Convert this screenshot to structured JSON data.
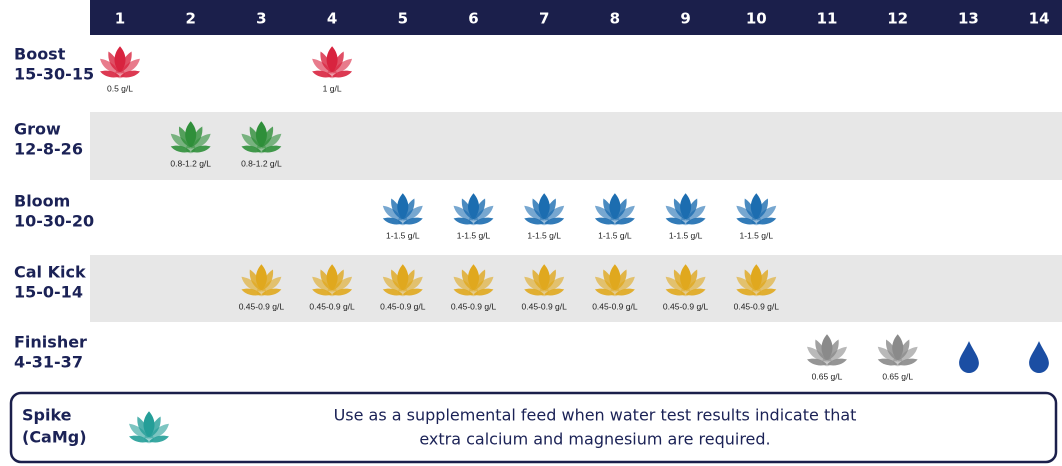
{
  "table": {
    "columns": [
      1,
      2,
      3,
      4,
      5,
      6,
      7,
      8,
      9,
      10,
      11,
      12,
      13,
      14
    ],
    "rows": [
      {
        "name": "Boost",
        "npk": "15-30-15",
        "color": "#d8233f",
        "doses": [
          "0.5 g/L",
          null,
          null,
          "1 g/L",
          null,
          null,
          null,
          null,
          null,
          null,
          null,
          null,
          null,
          null
        ]
      },
      {
        "name": "Grow",
        "npk": "12-8-26",
        "color": "#2f8f3a",
        "doses": [
          null,
          "0.8-1.2 g/L",
          "0.8-1.2 g/L",
          null,
          null,
          null,
          null,
          null,
          null,
          null,
          null,
          null,
          null,
          null
        ]
      },
      {
        "name": "Bloom",
        "npk": "10-30-20",
        "color": "#1c6db0",
        "doses": [
          null,
          null,
          null,
          null,
          "1-1.5 g/L",
          "1-1.5 g/L",
          "1-1.5 g/L",
          "1-1.5 g/L",
          "1-1.5 g/L",
          "1-1.5 g/L",
          null,
          null,
          null,
          null
        ]
      },
      {
        "name": "Cal Kick",
        "npk": "15-0-14",
        "color": "#e0a81e",
        "doses": [
          null,
          null,
          "0.45-0.9 g/L",
          "0.45-0.9 g/L",
          "0.45-0.9 g/L",
          "0.45-0.9 g/L",
          "0.45-0.9 g/L",
          "0.45-0.9 g/L",
          "0.45-0.9 g/L",
          "0.45-0.9 g/L",
          null,
          null,
          null,
          null
        ]
      },
      {
        "name": "Finisher",
        "npk": "4-31-37",
        "color": "#8a8a8a",
        "doses": [
          null,
          null,
          null,
          null,
          null,
          null,
          null,
          null,
          null,
          null,
          "0.65 g/L",
          "0.65 g/L",
          null,
          null
        ]
      }
    ],
    "spike": {
      "name": "Spike",
      "sub": "(CaMg)",
      "color": "#249e98",
      "note": [
        "Use as a supplemental feed when water test results indicate that",
        "extra calcium and magnesium are required."
      ]
    }
  }
}
